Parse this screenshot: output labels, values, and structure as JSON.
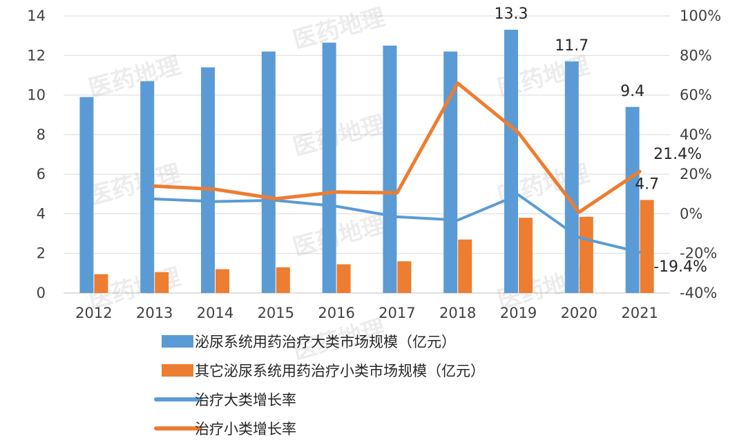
{
  "watermark": "医药地理",
  "chart_data": {
    "type": "bar",
    "categories": [
      "2012",
      "2013",
      "2014",
      "2015",
      "2016",
      "2017",
      "2018",
      "2019",
      "2020",
      "2021"
    ],
    "ylim_left": [
      0,
      14
    ],
    "ylim_right": [
      -40,
      100
    ],
    "left_ticks": [
      "0",
      "2",
      "4",
      "6",
      "8",
      "10",
      "12",
      "14"
    ],
    "right_ticks": [
      "-40%",
      "-20%",
      "0%",
      "20%",
      "40%",
      "60%",
      "80%",
      "100%"
    ],
    "grid": true,
    "legend_position": "bottom",
    "series": [
      {
        "name": "泌尿系统用药治疗大类市场规模（亿元）",
        "type": "bar",
        "axis": "left",
        "color": "#5B9BD5",
        "values": [
          9.9,
          10.7,
          11.4,
          12.2,
          12.65,
          12.5,
          12.2,
          13.3,
          11.7,
          9.4
        ]
      },
      {
        "name": "其它泌尿系统用药治疗小类市场规模（亿元）",
        "type": "bar",
        "axis": "left",
        "color": "#ED7D31",
        "values": [
          0.95,
          1.05,
          1.2,
          1.3,
          1.45,
          1.6,
          2.7,
          3.8,
          3.85,
          4.7
        ]
      },
      {
        "name": "治疗大类增长率",
        "type": "line",
        "axis": "right",
        "color": "#5B9BD5",
        "values": [
          null,
          7.5,
          6.2,
          6.8,
          3.8,
          -1.5,
          -3.2,
          9.6,
          -12.0,
          -19.4
        ]
      },
      {
        "name": "治疗小类增长率",
        "type": "line",
        "axis": "right",
        "color": "#ED7D31",
        "values": [
          null,
          14.0,
          12.4,
          7.6,
          11.0,
          10.6,
          66.0,
          41.0,
          0.8,
          21.4
        ]
      }
    ],
    "data_labels": [
      {
        "text": "13.3",
        "series": 0,
        "index": 7
      },
      {
        "text": "11.7",
        "series": 0,
        "index": 8
      },
      {
        "text": "9.4",
        "series": 0,
        "index": 9
      },
      {
        "text": "4.7",
        "series": 1,
        "index": 9
      },
      {
        "text": "21.4%",
        "series": 3,
        "index": 9
      },
      {
        "text": "-19.4%",
        "series": 2,
        "index": 9
      }
    ]
  }
}
